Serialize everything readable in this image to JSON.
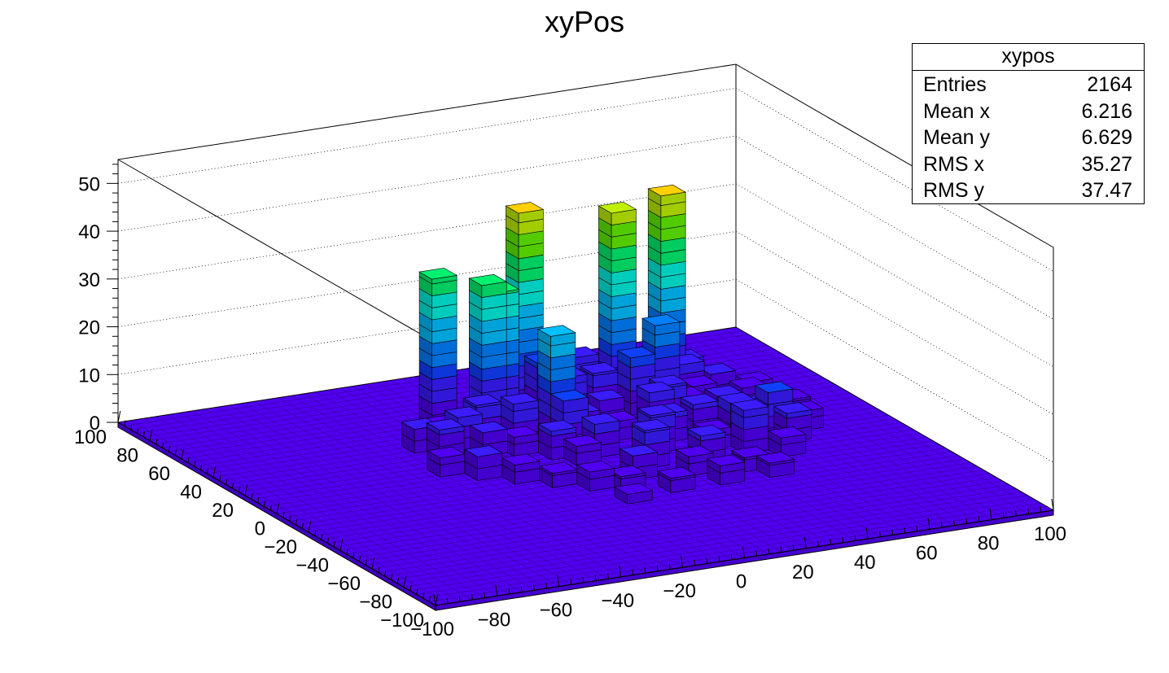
{
  "chart_data": {
    "type": "lego3d",
    "title": "xyPos",
    "xlabel": "",
    "ylabel": "",
    "zlabel": "",
    "xlim": [
      -100,
      100
    ],
    "ylim": [
      -100,
      100
    ],
    "zlim": [
      0,
      55
    ],
    "x_ticks": [
      -100,
      -80,
      -60,
      -40,
      -20,
      0,
      20,
      40,
      60,
      80,
      100
    ],
    "y_ticks": [
      -100,
      -80,
      -60,
      -40,
      -20,
      0,
      20,
      40,
      60,
      80,
      100
    ],
    "z_ticks": [
      0,
      10,
      20,
      30,
      40,
      50
    ],
    "grid": true,
    "bins_per_axis": 50,
    "peaks": [
      {
        "x": -18,
        "y": 58,
        "z": 31
      },
      {
        "x": -6,
        "y": 50,
        "z": 30
      },
      {
        "x": -2,
        "y": 50,
        "z": 28
      },
      {
        "x": 10,
        "y": 58,
        "z": 42
      },
      {
        "x": 6,
        "y": 22,
        "z": 10
      },
      {
        "x": 6,
        "y": 30,
        "z": 22
      },
      {
        "x": 38,
        "y": 54,
        "z": 40
      },
      {
        "x": 54,
        "y": 54,
        "z": 42
      },
      {
        "x": 48,
        "y": 46,
        "z": 17
      },
      {
        "x": 42,
        "y": 30,
        "z": 8
      }
    ],
    "low_bins": [
      {
        "x": -34,
        "y": 38,
        "z": 5
      },
      {
        "x": -30,
        "y": 30,
        "z": 6
      },
      {
        "x": -26,
        "y": 42,
        "z": 4
      },
      {
        "x": -22,
        "y": 34,
        "z": 7
      },
      {
        "x": -18,
        "y": 26,
        "z": 5
      },
      {
        "x": -14,
        "y": 38,
        "z": 8
      },
      {
        "x": -10,
        "y": 22,
        "z": 4
      },
      {
        "x": -10,
        "y": 46,
        "z": 6
      },
      {
        "x": -6,
        "y": 30,
        "z": 9
      },
      {
        "x": -2,
        "y": 14,
        "z": 6
      },
      {
        "x": 2,
        "y": 38,
        "z": 5
      },
      {
        "x": 2,
        "y": 6,
        "z": 4
      },
      {
        "x": 10,
        "y": 10,
        "z": 7
      },
      {
        "x": 14,
        "y": 30,
        "z": 5
      },
      {
        "x": 18,
        "y": 46,
        "z": 9
      },
      {
        "x": 22,
        "y": 22,
        "z": 4
      },
      {
        "x": 22,
        "y": 58,
        "z": 6
      },
      {
        "x": 26,
        "y": 6,
        "z": 8
      },
      {
        "x": 26,
        "y": 38,
        "z": 5
      },
      {
        "x": 30,
        "y": 50,
        "z": 8
      },
      {
        "x": 34,
        "y": 14,
        "z": 6
      },
      {
        "x": 34,
        "y": 66,
        "z": 5
      },
      {
        "x": 38,
        "y": 30,
        "z": 7
      },
      {
        "x": 42,
        "y": 2,
        "z": 4
      },
      {
        "x": 46,
        "y": 18,
        "z": 6
      },
      {
        "x": 46,
        "y": 62,
        "z": 5
      },
      {
        "x": 50,
        "y": 34,
        "z": 4
      },
      {
        "x": 54,
        "y": 10,
        "z": 7
      },
      {
        "x": 58,
        "y": 26,
        "z": 5
      },
      {
        "x": 58,
        "y": 42,
        "z": 4
      },
      {
        "x": 62,
        "y": 58,
        "z": 6
      },
      {
        "x": 66,
        "y": 14,
        "z": 5
      },
      {
        "x": 70,
        "y": 34,
        "z": 4
      },
      {
        "x": -38,
        "y": 14,
        "z": 4
      },
      {
        "x": -30,
        "y": 6,
        "z": 5
      },
      {
        "x": -22,
        "y": -2,
        "z": 4
      },
      {
        "x": -14,
        "y": -10,
        "z": 3
      },
      {
        "x": -6,
        "y": -18,
        "z": 4
      },
      {
        "x": 2,
        "y": -22,
        "z": 3
      },
      {
        "x": 10,
        "y": -14,
        "z": 5
      },
      {
        "x": 18,
        "y": -6,
        "z": 8
      },
      {
        "x": 26,
        "y": -18,
        "z": 4
      },
      {
        "x": 34,
        "y": -10,
        "z": 6
      },
      {
        "x": 42,
        "y": -22,
        "z": 3
      },
      {
        "x": 50,
        "y": -6,
        "z": 9
      },
      {
        "x": 58,
        "y": -14,
        "z": 4
      },
      {
        "x": 66,
        "y": -2,
        "z": 6
      },
      {
        "x": 74,
        "y": 6,
        "z": 4
      },
      {
        "x": 78,
        "y": 22,
        "z": 3
      },
      {
        "x": 62,
        "y": 2,
        "z": 10
      },
      {
        "x": 30,
        "y": -30,
        "z": 4
      },
      {
        "x": 14,
        "y": -30,
        "z": 3
      },
      {
        "x": -2,
        "y": -34,
        "z": 2
      },
      {
        "x": 46,
        "y": -30,
        "z": 3
      },
      {
        "x": 38,
        "y": 42,
        "z": 12
      },
      {
        "x": 14,
        "y": 54,
        "z": 11
      },
      {
        "x": 30,
        "y": 62,
        "z": 9
      },
      {
        "x": 50,
        "y": 58,
        "z": 6
      },
      {
        "x": 58,
        "y": 50,
        "z": 7
      },
      {
        "x": 66,
        "y": 46,
        "z": 5
      },
      {
        "x": 74,
        "y": 38,
        "z": 4
      }
    ],
    "palette": [
      "#5000f0",
      "#3a1cff",
      "#1040ff",
      "#0080ff",
      "#00c0ff",
      "#00f0e0",
      "#00f070",
      "#60f000",
      "#c0f000",
      "#ffd000",
      "#ff8000",
      "#ff2000"
    ]
  },
  "stats": {
    "name": "xypos",
    "rows": [
      {
        "label": "Entries",
        "value": "2164"
      },
      {
        "label": "Mean x",
        "value": "6.216"
      },
      {
        "label": "Mean y",
        "value": "6.629"
      },
      {
        "label": "RMS x",
        "value": "35.27"
      },
      {
        "label": "RMS y",
        "value": "37.47"
      }
    ]
  }
}
